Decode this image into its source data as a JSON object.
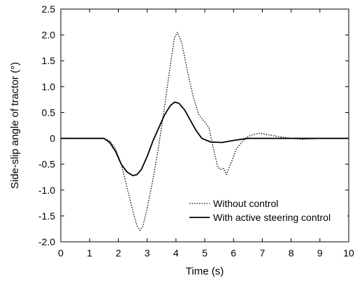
{
  "chart_data": {
    "type": "line",
    "title": "",
    "xlabel": "Time (s)",
    "ylabel": "Side-slip angle of tractor (°)",
    "xlim": [
      0,
      10
    ],
    "ylim": [
      -2.0,
      2.5
    ],
    "x_ticks": [
      "0",
      "1",
      "2",
      "3",
      "4",
      "5",
      "6",
      "7",
      "8",
      "9",
      "10"
    ],
    "y_ticks": [
      "2.5",
      "2.0",
      "1.5",
      "1.0",
      "0.5",
      "0",
      "-0.5",
      "-1.0",
      "-1.5",
      "-2.0"
    ],
    "grid": false,
    "legend_position": "bottom-right",
    "series": [
      {
        "name": "Without control",
        "style": "dotted",
        "color": "#000000",
        "points": [
          [
            0,
            0
          ],
          [
            1,
            0
          ],
          [
            1.5,
            0
          ],
          [
            1.7,
            -0.05
          ],
          [
            1.9,
            -0.2
          ],
          [
            2.1,
            -0.5
          ],
          [
            2.3,
            -0.95
          ],
          [
            2.5,
            -1.4
          ],
          [
            2.65,
            -1.7
          ],
          [
            2.75,
            -1.78
          ],
          [
            2.85,
            -1.7
          ],
          [
            3.0,
            -1.35
          ],
          [
            3.2,
            -0.8
          ],
          [
            3.4,
            -0.15
          ],
          [
            3.6,
            0.6
          ],
          [
            3.8,
            1.4
          ],
          [
            3.95,
            1.95
          ],
          [
            4.05,
            2.05
          ],
          [
            4.2,
            1.85
          ],
          [
            4.4,
            1.3
          ],
          [
            4.6,
            0.8
          ],
          [
            4.8,
            0.45
          ],
          [
            5.0,
            0.32
          ],
          [
            5.15,
            0.2
          ],
          [
            5.3,
            -0.2
          ],
          [
            5.45,
            -0.55
          ],
          [
            5.55,
            -0.6
          ],
          [
            5.65,
            -0.58
          ],
          [
            5.75,
            -0.7
          ],
          [
            5.9,
            -0.5
          ],
          [
            6.1,
            -0.2
          ],
          [
            6.4,
            0.0
          ],
          [
            6.6,
            0.06
          ],
          [
            6.9,
            0.1
          ],
          [
            7.2,
            0.07
          ],
          [
            7.6,
            0.03
          ],
          [
            8.0,
            0.0
          ],
          [
            8.4,
            -0.02
          ],
          [
            9.0,
            0
          ],
          [
            10,
            0
          ]
        ]
      },
      {
        "name": "With active steering control",
        "style": "solid",
        "color": "#000000",
        "points": [
          [
            0,
            0
          ],
          [
            1,
            0
          ],
          [
            1.5,
            0
          ],
          [
            1.7,
            -0.08
          ],
          [
            1.9,
            -0.25
          ],
          [
            2.1,
            -0.5
          ],
          [
            2.3,
            -0.65
          ],
          [
            2.5,
            -0.72
          ],
          [
            2.65,
            -0.7
          ],
          [
            2.8,
            -0.6
          ],
          [
            3.0,
            -0.35
          ],
          [
            3.2,
            -0.05
          ],
          [
            3.4,
            0.2
          ],
          [
            3.6,
            0.45
          ],
          [
            3.8,
            0.63
          ],
          [
            3.95,
            0.7
          ],
          [
            4.1,
            0.68
          ],
          [
            4.3,
            0.55
          ],
          [
            4.5,
            0.35
          ],
          [
            4.7,
            0.15
          ],
          [
            4.9,
            0.0
          ],
          [
            5.2,
            -0.07
          ],
          [
            5.6,
            -0.08
          ],
          [
            6.0,
            -0.04
          ],
          [
            6.5,
            0.0
          ],
          [
            7.5,
            0.0
          ],
          [
            8.5,
            0.0
          ],
          [
            10,
            0
          ]
        ]
      }
    ]
  }
}
